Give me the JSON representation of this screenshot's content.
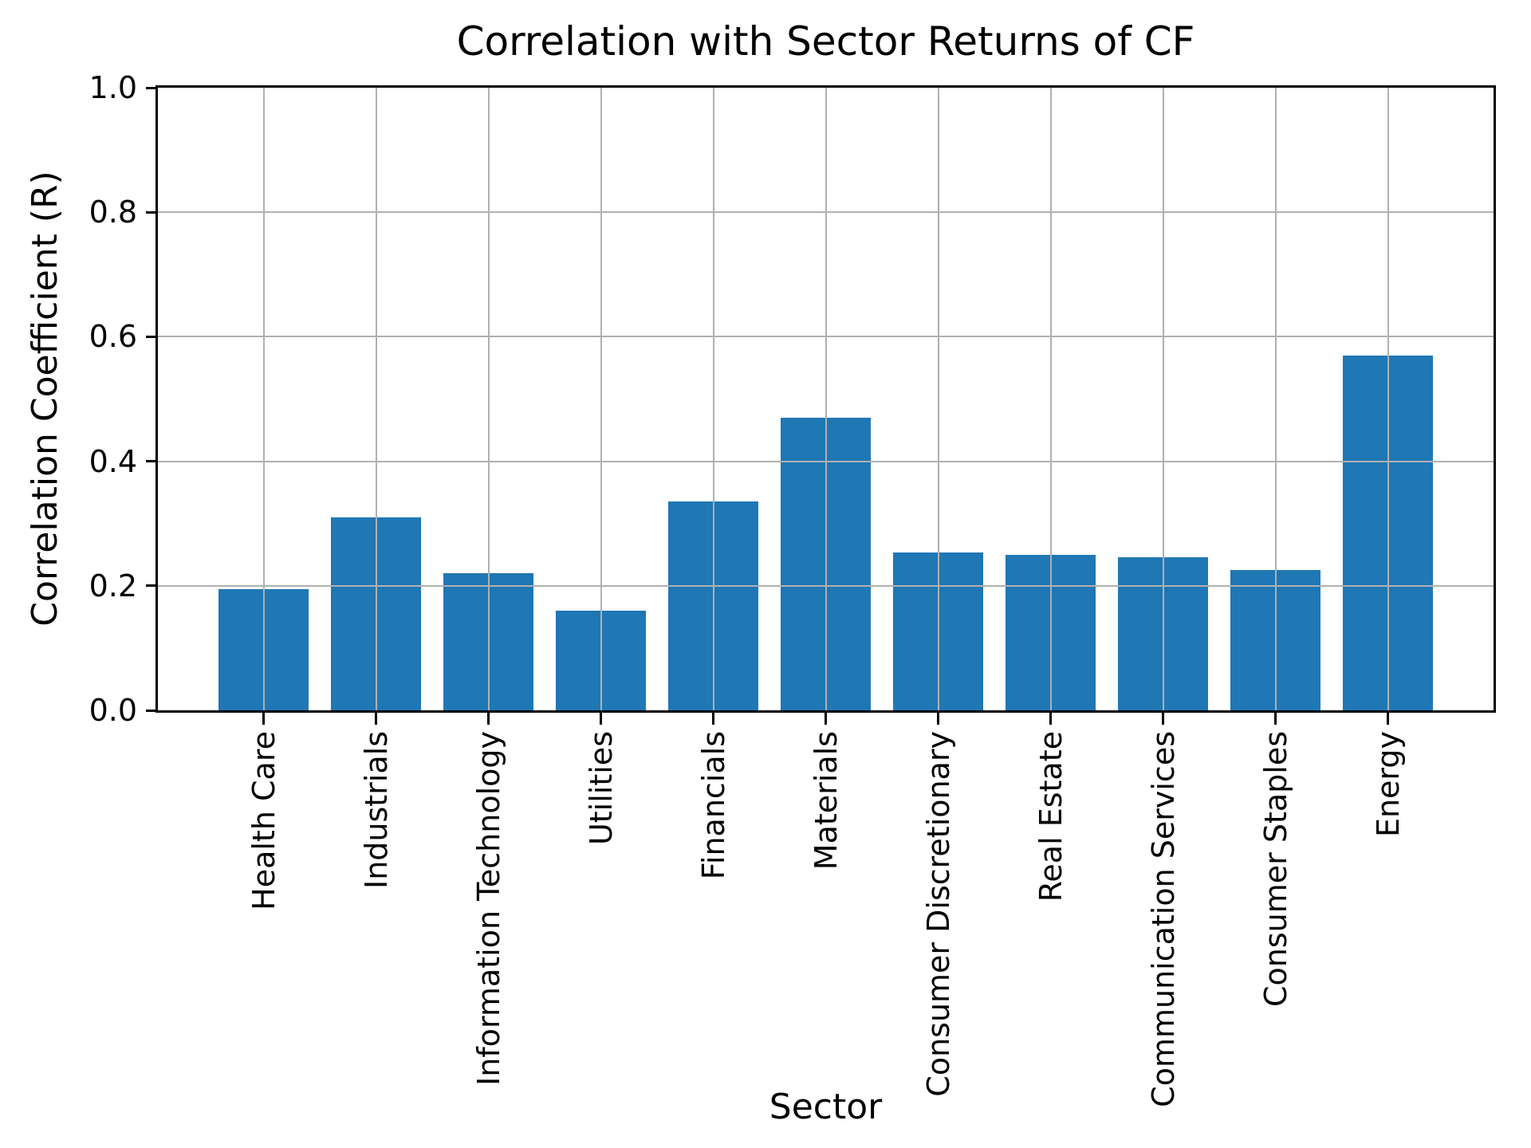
{
  "chart_data": {
    "type": "bar",
    "title": "Correlation with Sector Returns of CF",
    "xlabel": "Sector",
    "ylabel": "Correlation Coefficient (R)",
    "categories": [
      "Health Care",
      "Industrials",
      "Information Technology",
      "Utilities",
      "Financials",
      "Materials",
      "Consumer Discretionary",
      "Real Estate",
      "Communication Services",
      "Consumer Staples",
      "Energy"
    ],
    "values": [
      0.195,
      0.31,
      0.22,
      0.16,
      0.335,
      0.47,
      0.253,
      0.25,
      0.246,
      0.225,
      0.57
    ],
    "ylim": [
      0.0,
      1.0
    ],
    "yticks": [
      0.0,
      0.2,
      0.4,
      0.6,
      0.8,
      1.0
    ],
    "grid": true,
    "legend_position": "none",
    "bar_color": "#1f77b4",
    "grid_color": "#b0b0b0",
    "axis_color": "#000000",
    "background_color": "#ffffff"
  }
}
